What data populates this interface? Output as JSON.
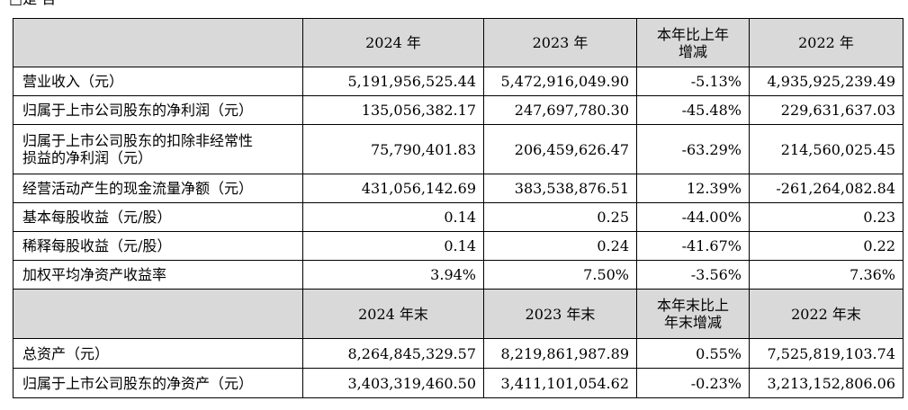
{
  "top_fragment": "□是 否",
  "header1": {
    "col1": "2024 年",
    "col2": "2023 年",
    "col3_line1": "本年比上年",
    "col3_line2": "增减",
    "col4": "2022 年"
  },
  "section1_rows": [
    {
      "label": "营业收入（元）",
      "v2024": "5,191,956,525.44",
      "v2023": "5,472,916,049.90",
      "change": "-5.13%",
      "v2022": "4,935,925,239.49"
    },
    {
      "label": "归属于上市公司股东的净利润（元）",
      "v2024": "135,056,382.17",
      "v2023": "247,697,780.30",
      "change": "-45.48%",
      "v2022": "229,631,637.03"
    },
    {
      "label_line1": "归属于上市公司股东的扣除非经常性",
      "label_line2": "损益的净利润（元）",
      "v2024": "75,790,401.83",
      "v2023": "206,459,626.47",
      "change": "-63.29%",
      "v2022": "214,560,025.45"
    },
    {
      "label": "经营活动产生的现金流量净额（元）",
      "v2024": "431,056,142.69",
      "v2023": "383,538,876.51",
      "change": "12.39%",
      "v2022": "-261,264,082.84"
    },
    {
      "label": "基本每股收益（元/股）",
      "v2024": "0.14",
      "v2023": "0.25",
      "change": "-44.00%",
      "v2022": "0.23"
    },
    {
      "label": "稀释每股收益（元/股）",
      "v2024": "0.14",
      "v2023": "0.24",
      "change": "-41.67%",
      "v2022": "0.22"
    },
    {
      "label": "加权平均净资产收益率",
      "v2024": "3.94%",
      "v2023": "7.50%",
      "change": "-3.56%",
      "v2022": "7.36%"
    }
  ],
  "header2": {
    "col1": "2024 年末",
    "col2": "2023 年末",
    "col3_line1": "本年末比上",
    "col3_line2": "年末增减",
    "col4": "2022 年末"
  },
  "section2_rows": [
    {
      "label": "总资产（元）",
      "v2024": "8,264,845,329.57",
      "v2023": "8,219,861,987.89",
      "change": "0.55%",
      "v2022": "7,525,819,103.74"
    },
    {
      "label": "归属于上市公司股东的净资产（元）",
      "v2024": "3,403,319,460.50",
      "v2023": "3,411,101,054.62",
      "change": "-0.23%",
      "v2022": "3,213,152,806.06"
    }
  ]
}
